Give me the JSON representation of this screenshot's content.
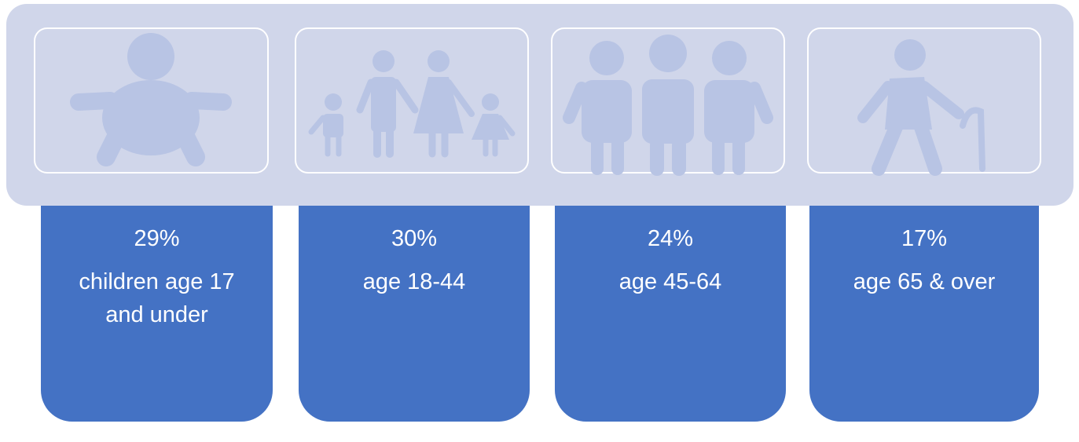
{
  "items": [
    {
      "value": "29%",
      "label": "children age 17 and under"
    },
    {
      "value": "30%",
      "label": "age 18-44"
    },
    {
      "value": "24%",
      "label": "age 45-64"
    },
    {
      "value": "17%",
      "label": "age 65 & over"
    }
  ]
}
